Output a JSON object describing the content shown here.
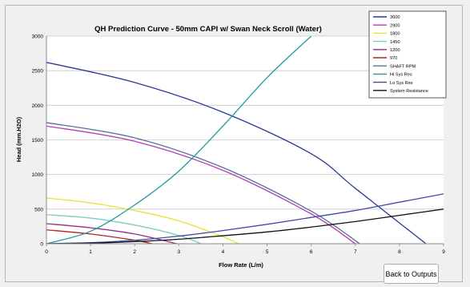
{
  "chart_data": {
    "type": "line",
    "title": "QH Prediction Curve - 50mm CAPI w/ Swan Neck Scroll (Water)",
    "xlabel": "Flow Rate  (L/m)",
    "ylabel": "Head (mm.H2O)",
    "xlim": [
      0,
      9
    ],
    "ylim": [
      0,
      3000
    ],
    "x_ticks": [
      "0",
      "1",
      "2",
      "3",
      "4",
      "5",
      "6",
      "7",
      "8",
      "9"
    ],
    "y_ticks": [
      "0",
      "500",
      "1000",
      "1500",
      "2000",
      "2500",
      "3000"
    ],
    "grid": true,
    "legend_position": "top-right",
    "series": [
      {
        "name": "3600",
        "color": "#2b3a8f",
        "x": [
          0,
          2,
          4,
          6,
          7,
          8.6
        ],
        "y": [
          2620,
          2330,
          1900,
          1300,
          800,
          0
        ]
      },
      {
        "name": "2900",
        "color": "#b43fb3",
        "x": [
          0,
          2,
          4,
          6,
          7
        ],
        "y": [
          1700,
          1480,
          1060,
          430,
          0
        ]
      },
      {
        "name": "1800",
        "color": "#e8e23a",
        "x": [
          0,
          1,
          2,
          3,
          4,
          4.35
        ],
        "y": [
          660,
          590,
          480,
          330,
          100,
          0
        ]
      },
      {
        "name": "1450",
        "color": "#79cfc4",
        "x": [
          0,
          1,
          2,
          3,
          3.5
        ],
        "y": [
          420,
          370,
          270,
          120,
          0
        ]
      },
      {
        "name": "1200",
        "color": "#9a2a82",
        "x": [
          0,
          1,
          2,
          2.95
        ],
        "y": [
          290,
          230,
          140,
          0
        ]
      },
      {
        "name": "970",
        "color": "#b22222",
        "x": [
          0,
          1,
          2,
          2.4
        ],
        "y": [
          200,
          140,
          50,
          0
        ]
      },
      {
        "name": "SHAFT RPM",
        "color": "#5a6e9a",
        "x": [
          0,
          2,
          4,
          6,
          7.1
        ],
        "y": [
          1750,
          1530,
          1100,
          470,
          0
        ]
      },
      {
        "name": "Hi Sys Res",
        "color": "#1f9aa0",
        "x": [
          0,
          1,
          2,
          3,
          4,
          5,
          6
        ],
        "y": [
          0,
          180,
          560,
          1050,
          1700,
          2400,
          3000
        ]
      },
      {
        "name": "Lo Sys Res",
        "color": "#4048a8",
        "x": [
          0,
          1,
          2,
          3,
          4,
          5,
          6,
          7,
          8,
          9
        ],
        "y": [
          0,
          15,
          50,
          110,
          190,
          280,
          380,
          480,
          600,
          720
        ]
      },
      {
        "name": "System Resistance",
        "color": "#111111",
        "x": [
          0,
          1,
          2,
          3,
          4,
          5,
          6,
          7,
          8,
          9
        ],
        "y": [
          0,
          8,
          30,
          65,
          115,
          170,
          240,
          320,
          410,
          500
        ]
      }
    ]
  },
  "buttons": {
    "back_label": "Back to Outputs"
  }
}
